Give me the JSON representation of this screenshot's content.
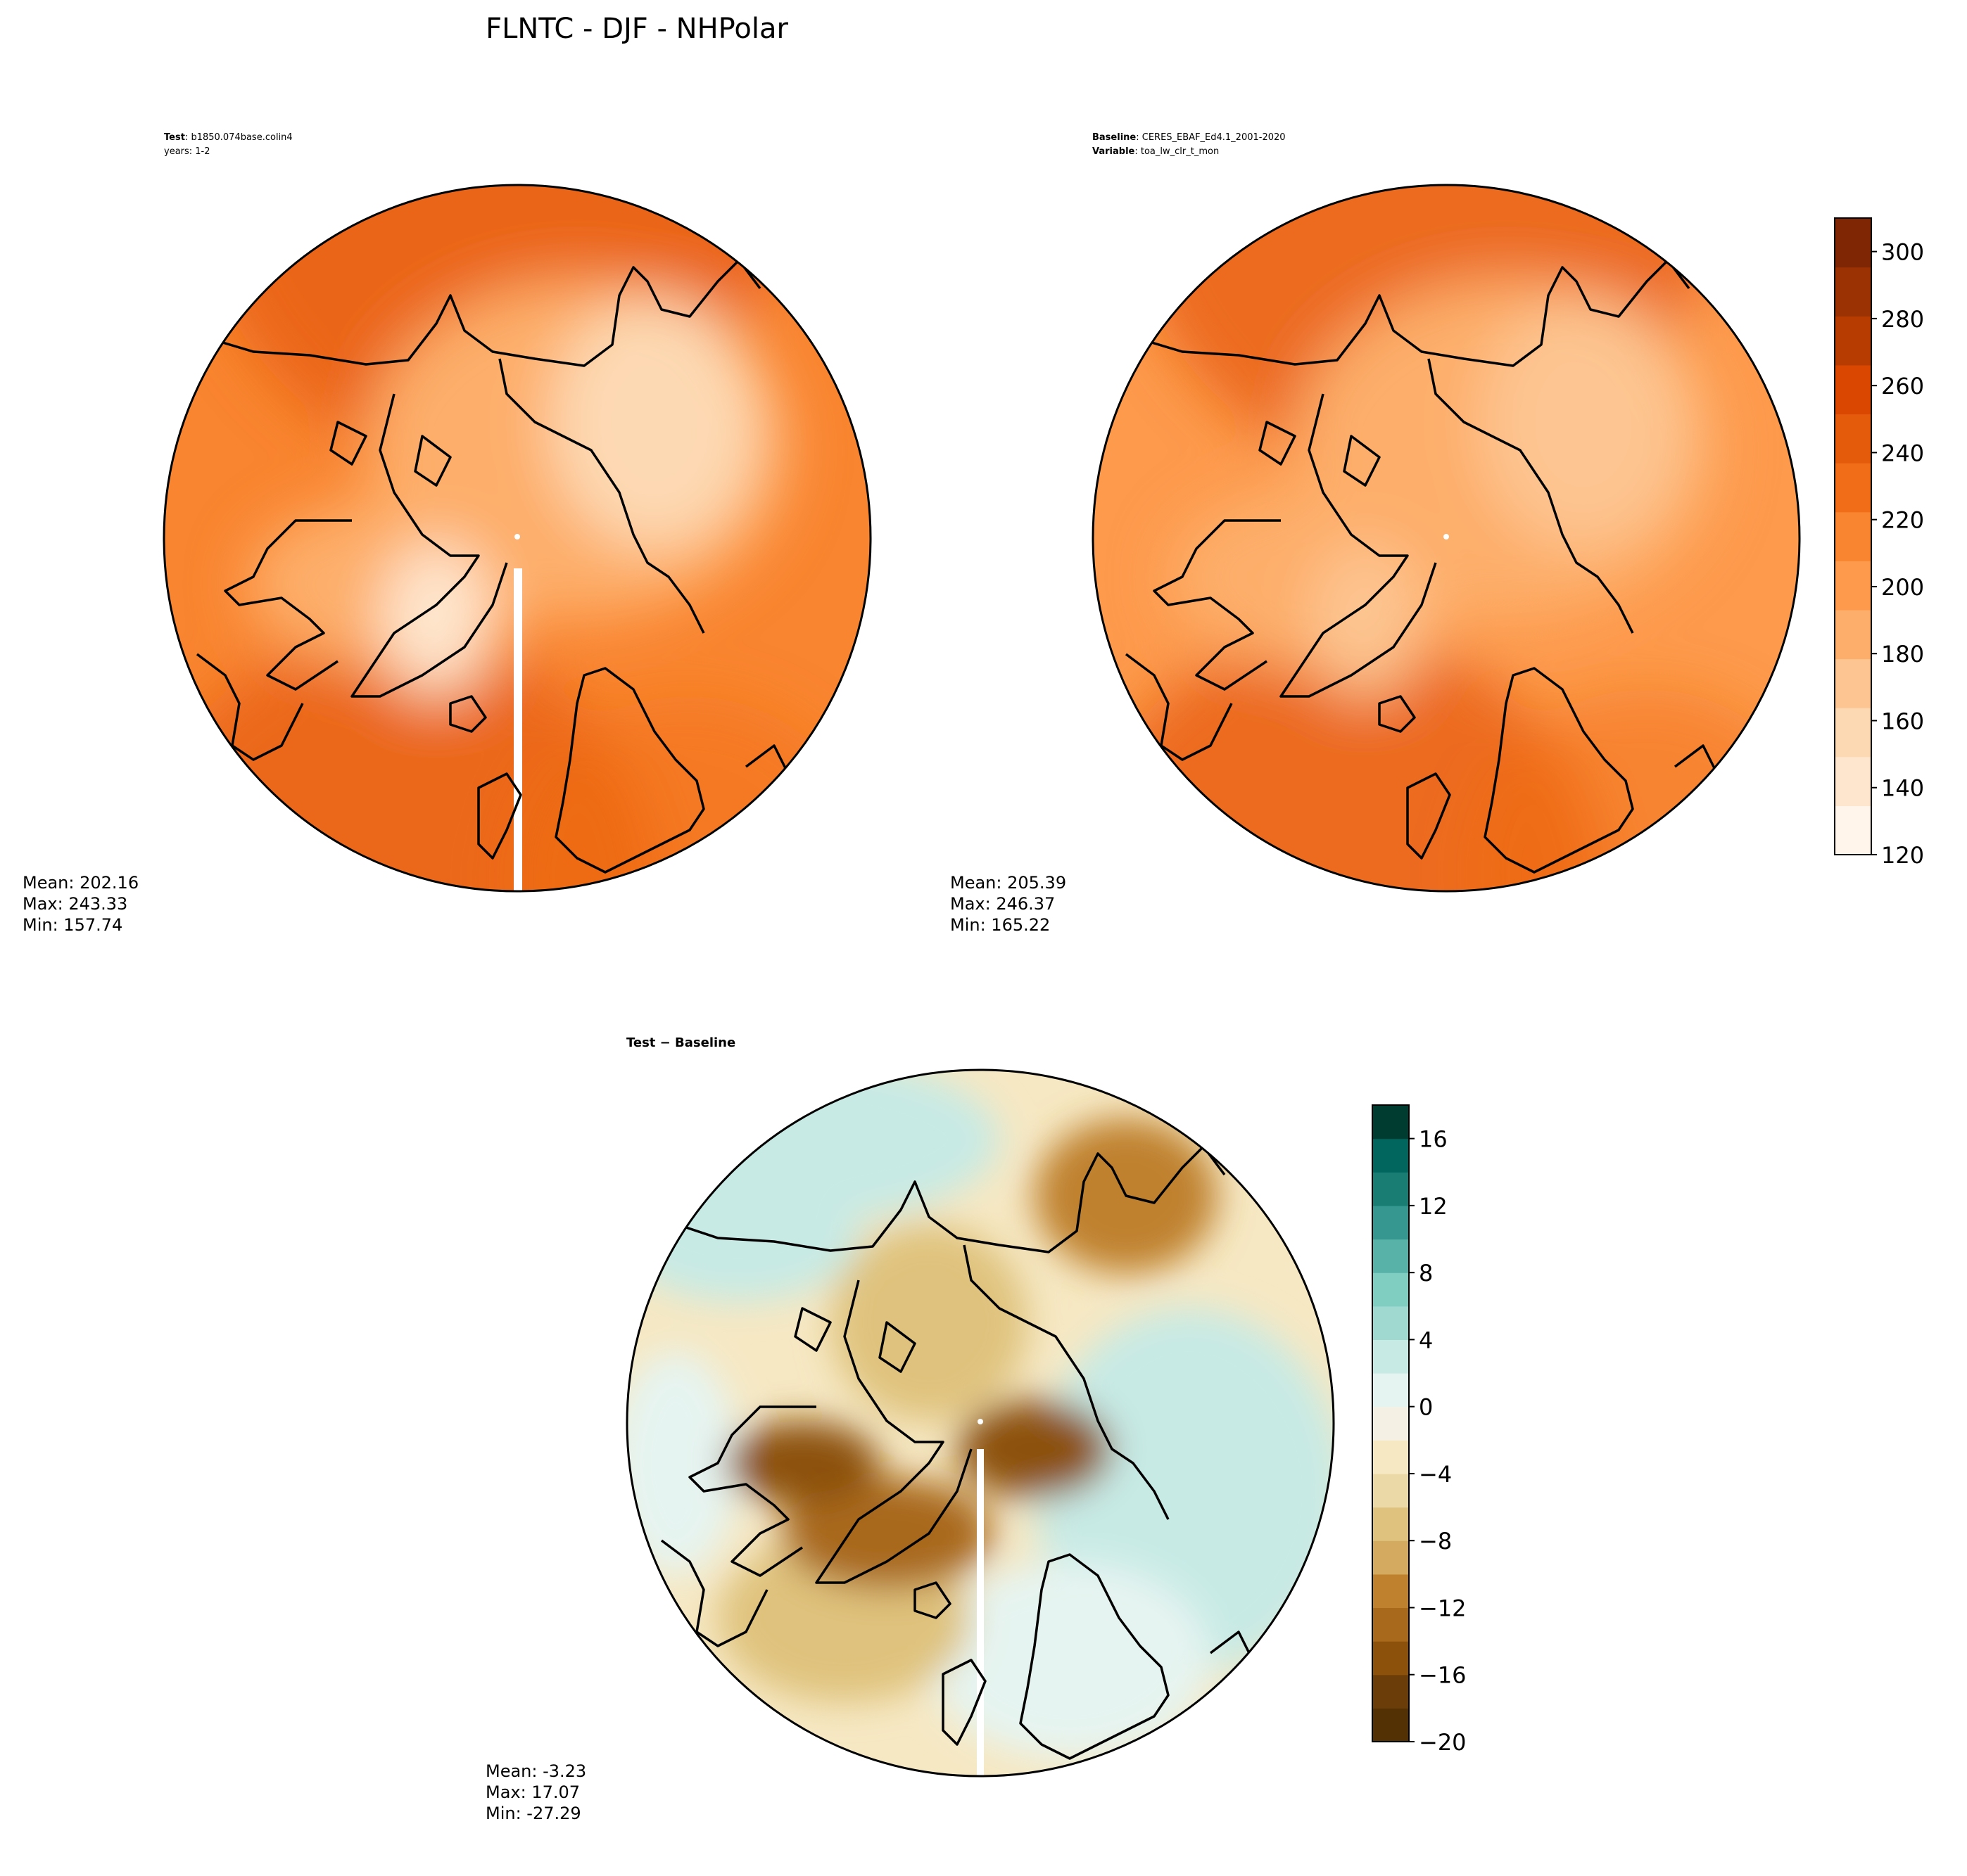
{
  "figure": {
    "title": "FLNTC - DJF - NHPolar"
  },
  "panels": {
    "test": {
      "label": "Test",
      "value": "b1850.074base.colin4",
      "years": "years: 1-2",
      "stats": {
        "mean": "Mean: 202.16",
        "max": "Max: 243.33",
        "min": "Min: 157.74"
      }
    },
    "baseline": {
      "label": "Baseline",
      "value": "CERES_EBAF_Ed4.1_2001-2020",
      "var_label": "Variable",
      "var_value": "toa_lw_clr_t_mon",
      "stats": {
        "mean": "Mean: 205.39",
        "max": "Max: 246.37",
        "min": "Min: 165.22"
      }
    },
    "diff": {
      "title": "Test − Baseline",
      "stats": {
        "mean": "Mean: -3.23",
        "max": "Max: 17.07",
        "min": "Min: -27.29"
      }
    }
  },
  "colorbars": {
    "main": {
      "ticks": [
        "120",
        "140",
        "160",
        "180",
        "200",
        "220",
        "240",
        "260",
        "280",
        "300"
      ],
      "range": [
        120,
        310
      ],
      "colors": [
        "#fff5eb",
        "#fee6ce",
        "#fdd9b3",
        "#fdc591",
        "#fdae6b",
        "#fd9a4c",
        "#f98530",
        "#f26d17",
        "#e55b0c",
        "#d94701",
        "#b63c02",
        "#9b3203",
        "#7f2704"
      ]
    },
    "diff": {
      "ticks": [
        "−20",
        "−16",
        "−12",
        "−8",
        "−4",
        "0",
        "4",
        "8",
        "12",
        "16"
      ],
      "range": [
        -20,
        18
      ],
      "colors": [
        "#543005",
        "#6b3d09",
        "#8c510a",
        "#a9691c",
        "#bf812d",
        "#d3aa5f",
        "#dfc27d",
        "#ecd9a8",
        "#f6e8c3",
        "#f5f0e4",
        "#e6f4f1",
        "#c7eae5",
        "#a0d9d0",
        "#80cdc1",
        "#58b2a8",
        "#35978f",
        "#1a7d74",
        "#01665e",
        "#003c30"
      ]
    }
  }
}
